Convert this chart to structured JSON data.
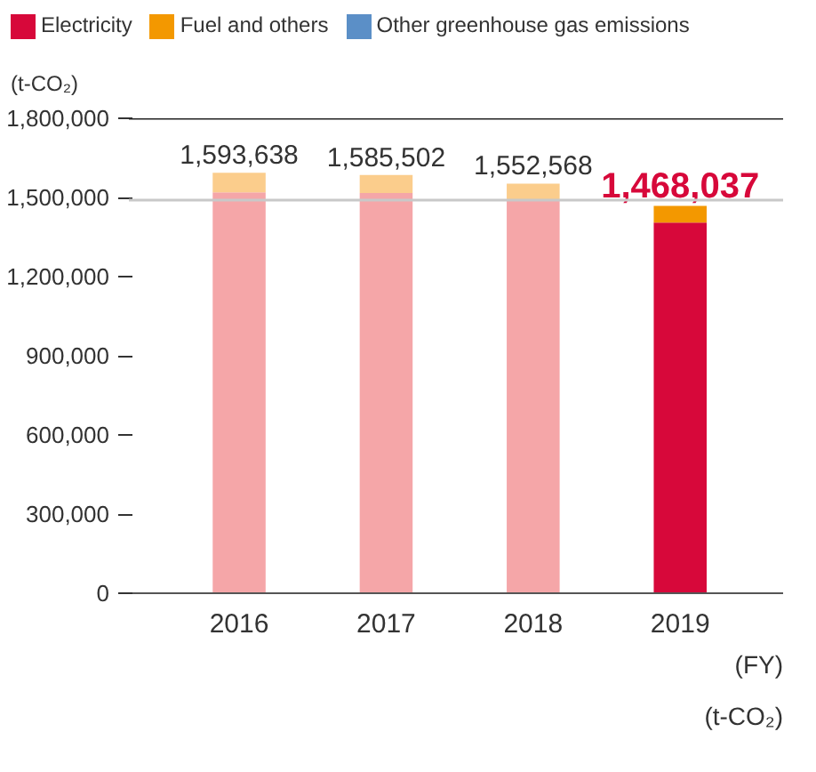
{
  "chart_data": {
    "type": "bar",
    "stacked": true,
    "categories": [
      "2016",
      "2017",
      "2018",
      "2019"
    ],
    "series": [
      {
        "name": "Electricity",
        "color": "#d7083a",
        "colors": [
          "#f5a6a8",
          "#f5a6a8",
          "#f5a6a8",
          "#d7083a"
        ],
        "values": [
          1519000,
          1517000,
          1493000,
          1405000
        ]
      },
      {
        "name": "Fuel and others",
        "color": "#f39800",
        "colors": [
          "#fbcd8c",
          "#fbcd8c",
          "#fbcd8c",
          "#f39800"
        ],
        "values": [
          74638,
          68502,
          59568,
          63037
        ]
      },
      {
        "name": "Other greenhouse gas emissions",
        "color": "#5b8fc7",
        "values": [
          0,
          0,
          0,
          0
        ]
      }
    ],
    "totals": [
      "1,593,638",
      "1,585,502",
      "1,552,568",
      "1,468,037"
    ],
    "ylabel": "(t-CO₂)",
    "xlabel": "(FY)",
    "ylim": [
      0,
      1800000
    ],
    "yticks": [
      {
        "value": 0,
        "label": "0"
      },
      {
        "value": 300000,
        "label": "300,000"
      },
      {
        "value": 600000,
        "label": "600,000"
      },
      {
        "value": 900000,
        "label": "900,000"
      },
      {
        "value": 1200000,
        "label": "1,200,000"
      },
      {
        "value": 1500000,
        "label": "1,500,000"
      },
      {
        "value": 1800000,
        "label": "1,800,000"
      }
    ],
    "ref_lines": [
      {
        "axis": "y",
        "value": 1490000,
        "color": "#c8c8c8"
      }
    ],
    "grid": false,
    "legend": "top",
    "annotations": [
      "(t-CO₂)"
    ]
  }
}
